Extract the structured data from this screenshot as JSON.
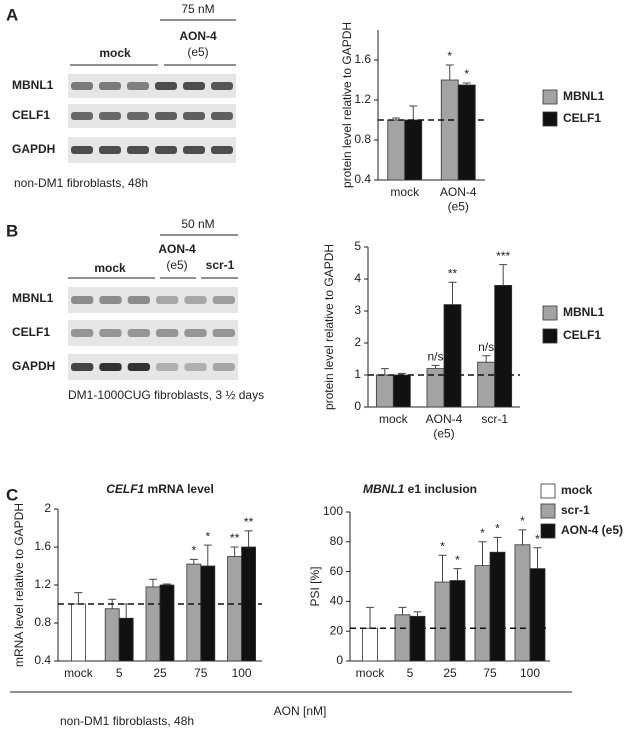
{
  "panel_a": {
    "label": "A",
    "concentration": "75 nM",
    "treatment": "AON-4",
    "exon": "(e5)",
    "control": "mock",
    "proteins": [
      "MBNL1",
      "CELF1",
      "GAPDH"
    ],
    "note": "non-DM1 fibroblasts, 48h"
  },
  "panel_b": {
    "label": "B",
    "concentration": "50 nM",
    "treatment": "AON-4",
    "exon": "(e5)",
    "scrambled": "scr-1",
    "control": "mock",
    "proteins": [
      "MBNL1",
      "CELF1",
      "GAPDH"
    ],
    "note": "DM1-1000CUG fibroblasts, 3 ½ days"
  },
  "panel_c": {
    "label": "C",
    "x_label": "AON [nM]",
    "note": "non-DM1 fibroblasts, 48h"
  },
  "chart_data": [
    {
      "type": "bar",
      "y_label": "protein level relative to GAPDH",
      "categories": [
        "mock",
        "AON-4\n(e5)"
      ],
      "series": [
        {
          "name": "MBNL1",
          "color": "#a3a3a3",
          "values": [
            1.0,
            1.4
          ],
          "errors": [
            0.02,
            0.15
          ],
          "annotations": [
            null,
            "*"
          ]
        },
        {
          "name": "CELF1",
          "color": "#111111",
          "values": [
            1.0,
            1.35
          ],
          "errors": [
            0.14,
            0.02
          ],
          "annotations": [
            null,
            "*"
          ]
        }
      ],
      "ylim": [
        0.4,
        1.9
      ],
      "yticks": [
        0.4,
        0.8,
        1.2,
        1.6
      ],
      "reference_line": 1,
      "legend": "right"
    },
    {
      "type": "bar",
      "y_label": "protein level relative to GAPDH",
      "categories": [
        "mock",
        "AON-4\n(e5)",
        "scr-1"
      ],
      "series": [
        {
          "name": "MBNL1",
          "color": "#a3a3a3",
          "values": [
            1.0,
            1.2,
            1.4
          ],
          "errors": [
            0.2,
            0.1,
            0.2
          ],
          "annotations": [
            null,
            "n/s",
            "n/s"
          ]
        },
        {
          "name": "CELF1",
          "color": "#111111",
          "values": [
            1.0,
            3.2,
            3.8
          ],
          "errors": [
            0.05,
            0.7,
            0.65
          ],
          "annotations": [
            null,
            "**",
            "***"
          ]
        }
      ],
      "ylim": [
        0,
        5
      ],
      "yticks": [
        0,
        1,
        2,
        3,
        4,
        5
      ],
      "reference_line": 1,
      "legend": "right"
    },
    {
      "type": "bar",
      "title": "CELF1 mRNA level",
      "y_label": "mRNA level relative to GAPDH",
      "categories": [
        "mock",
        "5",
        "25",
        "75",
        "100"
      ],
      "series": [
        {
          "name": "mock",
          "color": "#ffffff",
          "values": [
            1.0,
            null,
            null,
            null,
            null
          ],
          "errors": [
            0.12,
            null,
            null,
            null,
            null
          ],
          "annotations": [
            null,
            null,
            null,
            null,
            null
          ]
        },
        {
          "name": "scr-1",
          "color": "#a3a3a3",
          "values": [
            null,
            0.95,
            1.18,
            1.42,
            1.5
          ],
          "errors": [
            null,
            0.1,
            0.08,
            0.05,
            0.1
          ],
          "annotations": [
            null,
            null,
            null,
            "*",
            "**"
          ]
        },
        {
          "name": "AON-4 (e5)",
          "color": "#111111",
          "values": [
            null,
            0.85,
            1.2,
            1.4,
            1.6
          ],
          "errors": [
            null,
            0.15,
            0.01,
            0.22,
            0.17
          ],
          "annotations": [
            null,
            null,
            null,
            "*",
            "**"
          ]
        }
      ],
      "ylim": [
        0.4,
        2
      ],
      "yticks": [
        0.4,
        0.8,
        1.2,
        1.6,
        2
      ],
      "reference_line": 1
    },
    {
      "type": "bar",
      "title": "MBNL1 e1 inclusion",
      "y_label": "PSI [%]",
      "categories": [
        "mock",
        "5",
        "25",
        "75",
        "100"
      ],
      "series": [
        {
          "name": "mock",
          "color": "#ffffff",
          "values": [
            22,
            null,
            null,
            null,
            null
          ],
          "errors": [
            14,
            null,
            null,
            null,
            null
          ],
          "annotations": [
            null,
            null,
            null,
            null,
            null
          ]
        },
        {
          "name": "scr-1",
          "color": "#a3a3a3",
          "values": [
            null,
            31,
            53,
            64,
            78
          ],
          "errors": [
            null,
            5,
            18,
            16,
            10
          ],
          "annotations": [
            null,
            null,
            "*",
            "*",
            "*"
          ]
        },
        {
          "name": "AON-4 (e5)",
          "color": "#111111",
          "values": [
            null,
            30,
            54,
            73,
            62
          ],
          "errors": [
            null,
            3,
            8,
            10,
            14
          ],
          "annotations": [
            null,
            null,
            "*",
            "*",
            "*"
          ]
        }
      ],
      "ylim": [
        0,
        100
      ],
      "yticks": [
        0,
        20,
        40,
        60,
        80,
        100
      ],
      "reference_line": 22,
      "legend": "right"
    }
  ]
}
